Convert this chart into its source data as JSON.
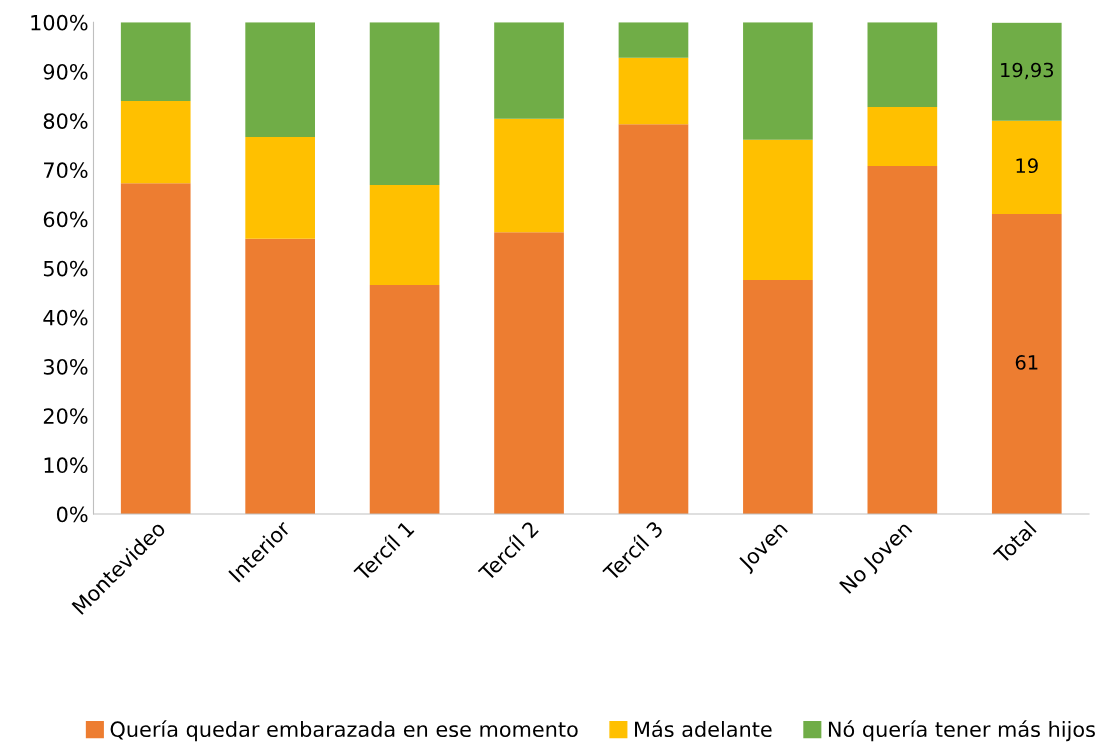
{
  "chart_data": {
    "type": "bar",
    "stacked": true,
    "categories": [
      "Montevideo",
      "Interior",
      "Tercíl 1",
      "Tercíl 2",
      "Tercíl 3",
      "Joven",
      "No Joven",
      "Total"
    ],
    "series": [
      {
        "name": "Quería quedar embarazada en ese momento",
        "color": "#ed7d31",
        "values": [
          67.3,
          56.0,
          46.6,
          57.3,
          79.3,
          47.6,
          70.8,
          61
        ],
        "value_labels": [
          null,
          null,
          null,
          null,
          null,
          null,
          null,
          "61"
        ]
      },
      {
        "name": "Más adelante",
        "color": "#ffc000",
        "values": [
          16.7,
          20.7,
          20.3,
          23.1,
          13.5,
          28.5,
          12.0,
          19
        ],
        "value_labels": [
          null,
          null,
          null,
          null,
          null,
          null,
          null,
          "19"
        ]
      },
      {
        "name": "Nó quería tener más hijos",
        "color": "#70ad47",
        "values": [
          16.0,
          23.3,
          33.1,
          19.6,
          7.2,
          23.9,
          17.2,
          19.93
        ],
        "value_labels": [
          null,
          null,
          null,
          null,
          null,
          null,
          null,
          "19,93"
        ]
      }
    ],
    "ylim": [
      0,
      100
    ],
    "yticks": [
      {
        "value": 0,
        "label": "0%"
      },
      {
        "value": 10,
        "label": "10%"
      },
      {
        "value": 20,
        "label": "20%"
      },
      {
        "value": 30,
        "label": "30%"
      },
      {
        "value": 40,
        "label": "40%"
      },
      {
        "value": 50,
        "label": "50%"
      },
      {
        "value": 60,
        "label": "60%"
      },
      {
        "value": 70,
        "label": "70%"
      },
      {
        "value": 80,
        "label": "80%"
      },
      {
        "value": 90,
        "label": "90%"
      },
      {
        "value": 100,
        "label": "100%"
      }
    ],
    "grid": false,
    "legend": "bottom"
  }
}
